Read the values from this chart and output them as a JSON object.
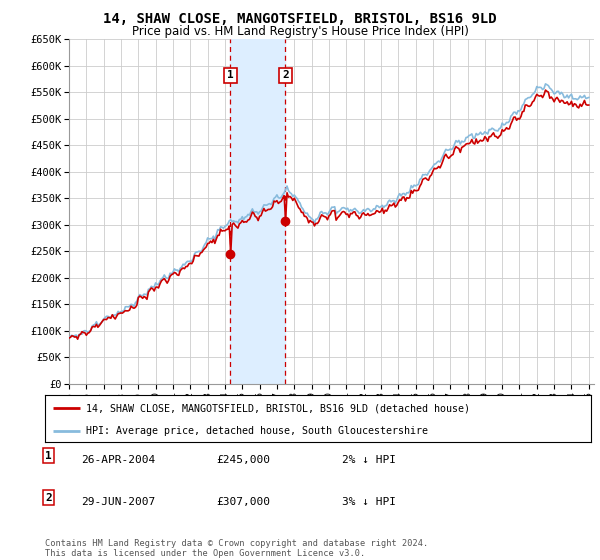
{
  "title": "14, SHAW CLOSE, MANGOTSFIELD, BRISTOL, BS16 9LD",
  "subtitle": "Price paid vs. HM Land Registry's House Price Index (HPI)",
  "legend_line1": "14, SHAW CLOSE, MANGOTSFIELD, BRISTOL, BS16 9LD (detached house)",
  "legend_line2": "HPI: Average price, detached house, South Gloucestershire",
  "footnote": "Contains HM Land Registry data © Crown copyright and database right 2024.\nThis data is licensed under the Open Government Licence v3.0.",
  "transaction1_date": "26-APR-2004",
  "transaction1_price": "£245,000",
  "transaction1_hpi": "2% ↓ HPI",
  "transaction2_date": "29-JUN-2007",
  "transaction2_price": "£307,000",
  "transaction2_hpi": "3% ↓ HPI",
  "transaction1_year": 2004.32,
  "transaction1_value": 245000,
  "transaction2_year": 2007.49,
  "transaction2_value": 307000,
  "ylim": [
    0,
    650000
  ],
  "yticks": [
    0,
    50000,
    100000,
    150000,
    200000,
    250000,
    300000,
    350000,
    400000,
    450000,
    500000,
    550000,
    600000,
    650000
  ],
  "xlim_start": 1995,
  "xlim_end": 2025.3,
  "background_color": "#ffffff",
  "plot_bg_color": "#ffffff",
  "grid_color": "#cccccc",
  "line_red_color": "#cc0000",
  "line_blue_color": "#88bbdd",
  "shade_color": "#ddeeff",
  "marker_border_color": "#cc0000"
}
